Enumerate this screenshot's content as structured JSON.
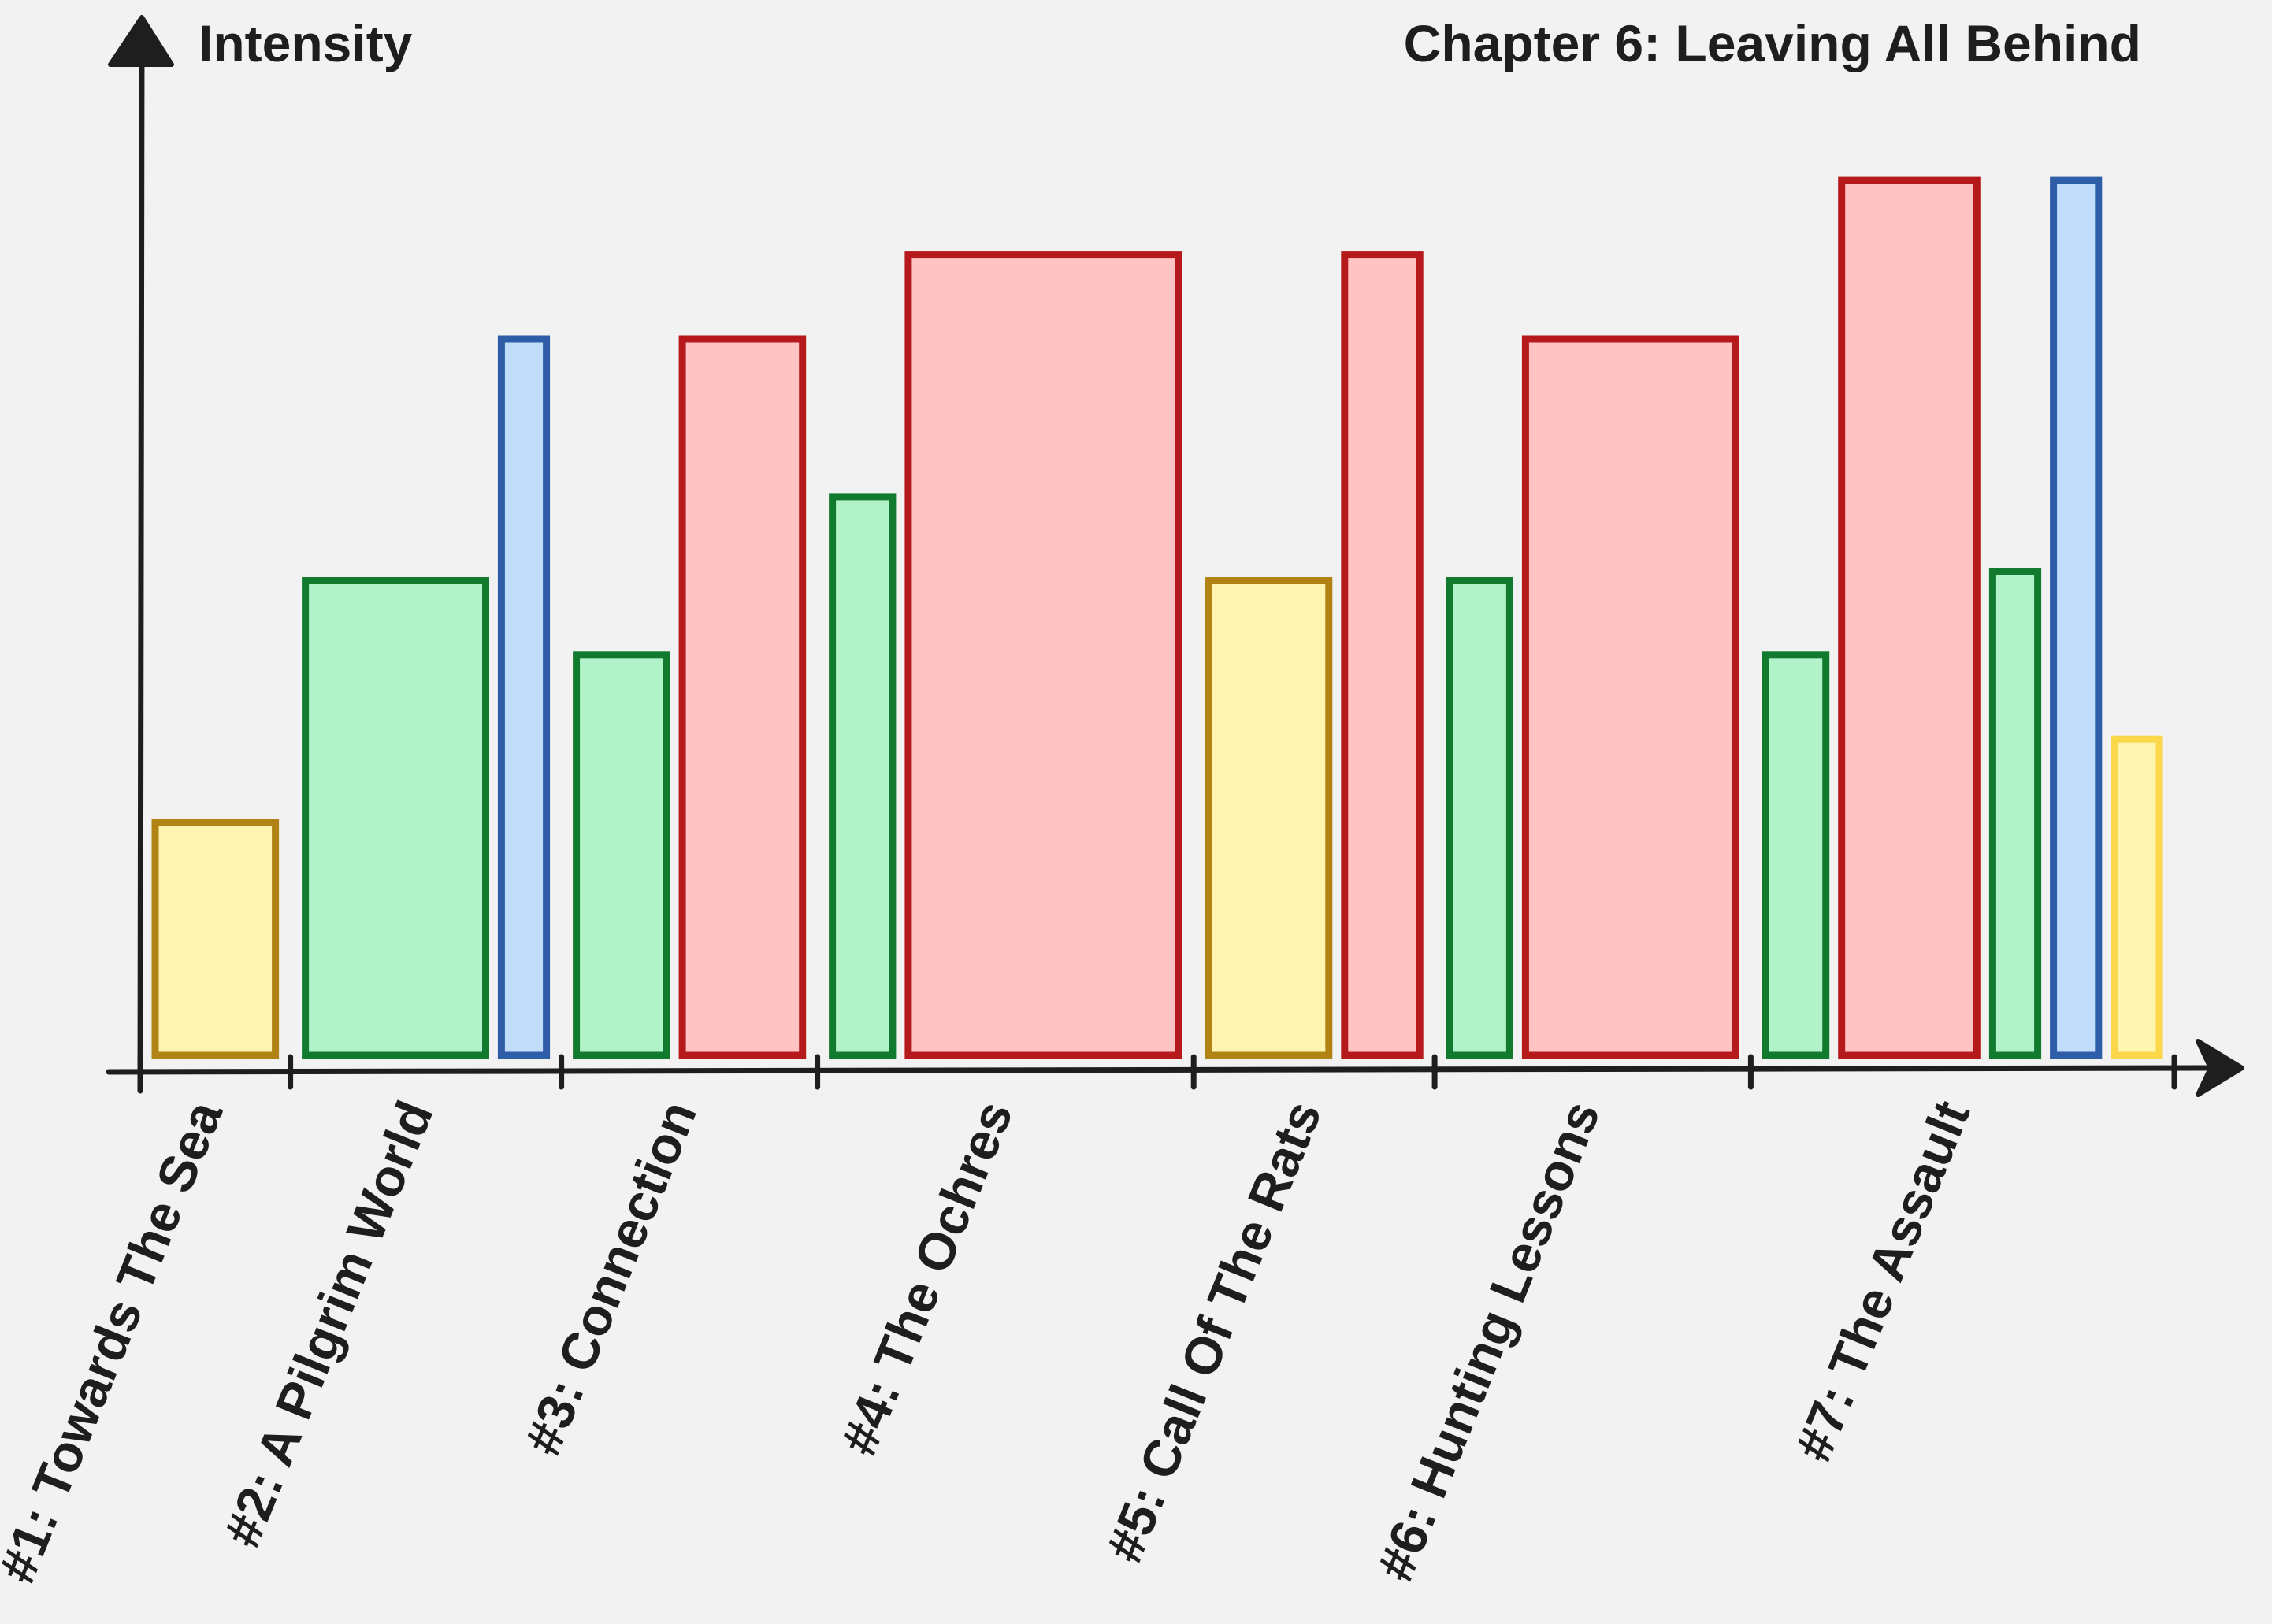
{
  "chart_data": {
    "type": "bar",
    "title": "Chapter 6: Leaving All Behind",
    "ylabel": "Intensity",
    "xlabel": "",
    "ylim": [
      0,
      11
    ],
    "grid": false,
    "legend": "none",
    "palette": {
      "yellow": {
        "fill": "#fff5b0",
        "stroke": "#b08314"
      },
      "green": {
        "fill": "#b2f2c8",
        "stroke": "#117a2e"
      },
      "blue": {
        "fill": "#c2dcfb",
        "stroke": "#2f5ea8"
      },
      "red": {
        "fill": "#ffc3c3",
        "stroke": "#b5191c"
      },
      "light-yellow": {
        "fill": "#fff5b0",
        "stroke": "#fad84a"
      }
    },
    "categories": [
      {
        "label": "#1: Towards The Sea",
        "bars": [
          {
            "color": "yellow",
            "value": 2.5,
            "weight": 4
          }
        ]
      },
      {
        "label": "#2: A Pilgrim World",
        "bars": [
          {
            "color": "green",
            "value": 5.1,
            "weight": 6
          },
          {
            "color": "blue",
            "value": 7.7,
            "weight": 1.5
          }
        ]
      },
      {
        "label": "#3: Connection",
        "bars": [
          {
            "color": "green",
            "value": 4.3,
            "weight": 3
          },
          {
            "color": "red",
            "value": 7.7,
            "weight": 4
          }
        ]
      },
      {
        "label": "#4: The Ochres",
        "bars": [
          {
            "color": "green",
            "value": 6.0,
            "weight": 2
          },
          {
            "color": "red",
            "value": 8.6,
            "weight": 9
          }
        ]
      },
      {
        "label": "#5: Call Of The Rats",
        "bars": [
          {
            "color": "yellow",
            "value": 5.1,
            "weight": 4
          },
          {
            "color": "red",
            "value": 8.6,
            "weight": 2.5
          }
        ]
      },
      {
        "label": "#6: Hunting Lessons",
        "bars": [
          {
            "color": "green",
            "value": 5.1,
            "weight": 2
          },
          {
            "color": "red",
            "value": 7.7,
            "weight": 7
          }
        ]
      },
      {
        "label": "#7: The Assault",
        "bars": [
          {
            "color": "green",
            "value": 4.3,
            "weight": 2
          },
          {
            "color": "red",
            "value": 9.4,
            "weight": 4.5
          },
          {
            "color": "green",
            "value": 5.2,
            "weight": 1.5
          },
          {
            "color": "blue",
            "value": 9.4,
            "weight": 1.5
          },
          {
            "color": "light-yellow",
            "value": 3.4,
            "weight": 1.5
          }
        ]
      }
    ]
  }
}
